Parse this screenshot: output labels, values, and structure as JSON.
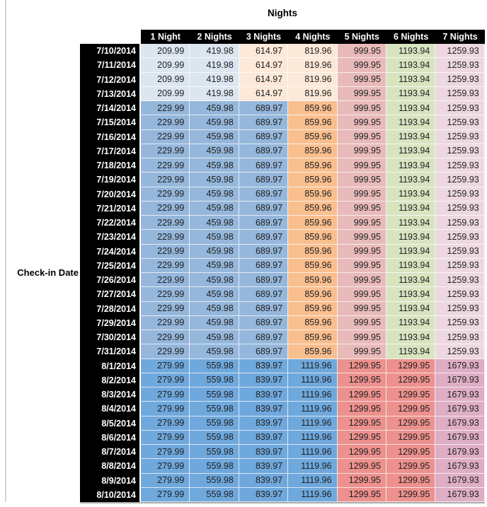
{
  "chart_data": {
    "type": "table",
    "title": "Nights",
    "row_header_label": "Check-in Date",
    "columns": [
      "1 Night",
      "2 Nights",
      "3 Nights",
      "4 Nights",
      "5 Nights",
      "6 Nights",
      "7 Nights"
    ],
    "row_groups": [
      {
        "dates": [
          "7/10/2014",
          "7/11/2014",
          "7/12/2014",
          "7/13/2014"
        ],
        "values": [
          "209.99",
          "419.98",
          "614.97",
          "819.96",
          "999.95",
          "1193.94",
          "1259.93"
        ],
        "cell_colors": [
          "lightBlue",
          "lightBlue",
          "lightOrange",
          "lightOrange",
          "pink",
          "green",
          "lilac"
        ]
      },
      {
        "dates": [
          "7/14/2014",
          "7/15/2014",
          "7/16/2014",
          "7/17/2014",
          "7/18/2014",
          "7/19/2014",
          "7/20/2014",
          "7/21/2014",
          "7/22/2014",
          "7/23/2014",
          "7/24/2014",
          "7/25/2014",
          "7/26/2014",
          "7/27/2014",
          "7/28/2014",
          "7/29/2014",
          "7/30/2014",
          "7/31/2014"
        ],
        "values": [
          "229.99",
          "459.98",
          "689.97",
          "859.96",
          "999.95",
          "1193.94",
          "1259.93"
        ],
        "cell_colors": [
          "medBlue",
          "medBlue",
          "medBlue",
          "medOrange",
          "pink",
          "green",
          "lilac"
        ]
      },
      {
        "dates": [
          "8/1/2014",
          "8/2/2014",
          "8/3/2014",
          "8/4/2014",
          "8/5/2014",
          "8/6/2014",
          "8/7/2014",
          "8/8/2014",
          "8/9/2014",
          "8/10/2014"
        ],
        "values": [
          "279.99",
          "559.98",
          "839.97",
          "1119.96",
          "1299.95",
          "1299.95",
          "1679.93"
        ],
        "cell_colors": [
          "strongBlue",
          "strongBlue",
          "strongBlue",
          "strongBlue",
          "salmon",
          "salmon",
          "mauve"
        ]
      }
    ],
    "palette": {
      "lightBlue": "#DCE6F1",
      "lightOrange": "#FDE9D9",
      "medBlue": "#95B7DB",
      "medOrange": "#FABF8F",
      "pink": "#E8BBBA",
      "green": "#D8E4C0",
      "lilac": "#EDD8E1",
      "strongBlue": "#6FA8DC",
      "salmon": "#EC918D",
      "mauve": "#DEAEC5"
    },
    "header_bg": "#000000",
    "header_text_color": "#ffffff"
  }
}
